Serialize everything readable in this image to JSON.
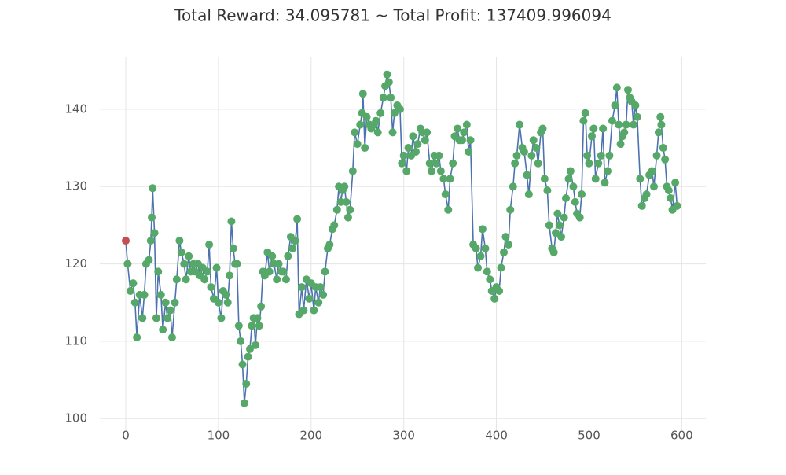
{
  "chart_data": {
    "type": "line",
    "title": "Total Reward: 34.095781 ~ Total Profit: 137409.996094",
    "x": [
      0,
      2,
      5,
      8,
      10,
      12,
      15,
      18,
      20,
      22,
      25,
      27,
      28,
      29,
      31,
      33,
      35,
      38,
      40,
      43,
      45,
      48,
      50,
      53,
      55,
      58,
      60,
      63,
      65,
      68,
      70,
      73,
      75,
      78,
      80,
      83,
      85,
      88,
      90,
      92,
      95,
      98,
      100,
      103,
      105,
      108,
      110,
      112,
      114,
      116,
      118,
      120,
      122,
      124,
      126,
      128,
      130,
      132,
      134,
      136,
      138,
      140,
      142,
      144,
      146,
      148,
      150,
      153,
      155,
      158,
      160,
      163,
      165,
      168,
      170,
      173,
      175,
      178,
      180,
      183,
      185,
      187,
      190,
      192,
      195,
      198,
      200,
      203,
      205,
      208,
      210,
      213,
      215,
      218,
      220,
      223,
      225,
      228,
      230,
      232,
      234,
      236,
      238,
      240,
      242,
      245,
      247,
      250,
      253,
      255,
      256,
      258,
      260,
      263,
      265,
      268,
      270,
      272,
      275,
      278,
      280,
      282,
      284,
      286,
      288,
      290,
      293,
      296,
      298,
      300,
      303,
      305,
      308,
      310,
      313,
      315,
      318,
      320,
      323,
      325,
      328,
      330,
      333,
      335,
      338,
      340,
      343,
      345,
      348,
      350,
      353,
      355,
      358,
      360,
      363,
      365,
      368,
      370,
      372,
      375,
      378,
      380,
      383,
      385,
      388,
      390,
      393,
      395,
      398,
      400,
      403,
      405,
      408,
      410,
      413,
      415,
      418,
      420,
      422,
      425,
      428,
      430,
      433,
      435,
      438,
      440,
      443,
      445,
      448,
      450,
      452,
      455,
      457,
      460,
      462,
      464,
      466,
      468,
      470,
      473,
      475,
      478,
      480,
      483,
      485,
      487,
      490,
      492,
      494,
      496,
      498,
      500,
      503,
      505,
      507,
      510,
      513,
      515,
      517,
      520,
      522,
      525,
      528,
      530,
      532,
      534,
      536,
      538,
      540,
      542,
      544,
      546,
      548,
      550,
      552,
      555,
      557,
      560,
      562,
      565,
      568,
      570,
      573,
      575,
      577,
      578,
      580,
      582,
      584,
      586,
      588,
      590,
      593,
      595
    ],
    "values": [
      123,
      120,
      116.5,
      117.5,
      115,
      110.5,
      116,
      113,
      116,
      120,
      120.5,
      123,
      126,
      129.8,
      124,
      113,
      119,
      116,
      111.5,
      115,
      113,
      114,
      110.5,
      115,
      118,
      123,
      121.5,
      120,
      118,
      121,
      119,
      120,
      119,
      120,
      118.5,
      119.5,
      118,
      119,
      122.5,
      117,
      115.5,
      119.5,
      115,
      113,
      116.5,
      116,
      115,
      118.5,
      125.5,
      122,
      120,
      120,
      112,
      110,
      107,
      102,
      104.5,
      108,
      109,
      112,
      113,
      109.5,
      113,
      112,
      114.5,
      119,
      118.5,
      121.5,
      119,
      121,
      120,
      118,
      120,
      119,
      119,
      118,
      121,
      123.5,
      122,
      123,
      125.8,
      113.5,
      117,
      114,
      118,
      115.5,
      117.5,
      114,
      117,
      115,
      117,
      116,
      119,
      122,
      122.5,
      124.5,
      125,
      127,
      130,
      128,
      129.5,
      130,
      128,
      126,
      127,
      132,
      137,
      135.5,
      138,
      139.5,
      142,
      135,
      139,
      138,
      137.5,
      138,
      138.5,
      137,
      139.5,
      141.5,
      143,
      144.5,
      143.5,
      141.5,
      137,
      139.5,
      140.5,
      140,
      133,
      134,
      132,
      135,
      134,
      136.5,
      134.5,
      135.5,
      137.5,
      137,
      136,
      137,
      133,
      132,
      134,
      133,
      134,
      132,
      131,
      129,
      127,
      131,
      133,
      136.5,
      137.5,
      136,
      136,
      137,
      138,
      134.5,
      136,
      122.5,
      122,
      119.5,
      121,
      124.5,
      122,
      119,
      118,
      116.5,
      115.5,
      117,
      116.5,
      119.5,
      121.5,
      123.5,
      122.5,
      127,
      130,
      133,
      134,
      138,
      135,
      134.5,
      131.5,
      129,
      134,
      136,
      135,
      133,
      137,
      137.5,
      131,
      129.5,
      125,
      122,
      121.5,
      124,
      126.5,
      125,
      123.5,
      126,
      128.5,
      131,
      132,
      130,
      128,
      126.5,
      126,
      129,
      138.5,
      139.5,
      134,
      133,
      136.5,
      137.5,
      131,
      133,
      134,
      137.5,
      130.5,
      132,
      134,
      138.5,
      140.5,
      142.8,
      138,
      135.5,
      136.5,
      137,
      138,
      142.5,
      141.5,
      141,
      138,
      140.5,
      139,
      131,
      127.5,
      128.5,
      129,
      131.5,
      132,
      130,
      134,
      137,
      139,
      138,
      135,
      133.5,
      130,
      129.5,
      128.5,
      127,
      130.5,
      127.5
    ],
    "line_color": "#4c72b0",
    "marker_color": "#55a868",
    "first_marker_color": "#c44e52",
    "xlim": [
      -28,
      626
    ],
    "ylim": [
      98.5,
      146.7
    ],
    "xticks": [
      0,
      100,
      200,
      300,
      400,
      500,
      600
    ],
    "yticks": [
      100,
      110,
      120,
      130,
      140
    ],
    "grid": true
  }
}
